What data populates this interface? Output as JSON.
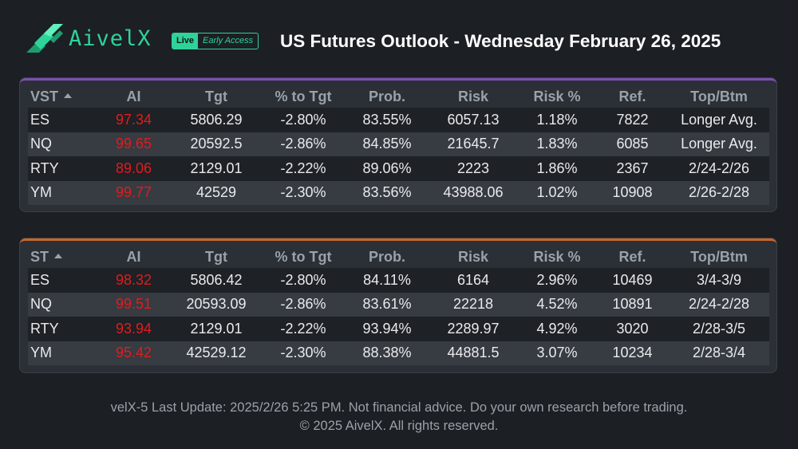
{
  "brand": {
    "name": "AivelX",
    "badge_live": "Live",
    "badge_early": "Early Access"
  },
  "page_title": "US Futures Outlook - Wednesday February 26, 2025",
  "columns": [
    "AI",
    "Tgt",
    "% to Tgt",
    "Prob.",
    "Risk",
    "Risk %",
    "Ref.",
    "Top/Btm"
  ],
  "vst": {
    "label": "VST",
    "rows": [
      {
        "symbol": "ES",
        "ai": "97.34",
        "tgt": "5806.29",
        "pct": "-2.80%",
        "prob": "83.55%",
        "risk": "6057.13",
        "risk_pct": "1.18%",
        "ref": "7822",
        "top_btm": "Longer Avg."
      },
      {
        "symbol": "NQ",
        "ai": "99.65",
        "tgt": "20592.5",
        "pct": "-2.86%",
        "prob": "84.85%",
        "risk": "21645.7",
        "risk_pct": "1.83%",
        "ref": "6085",
        "top_btm": "Longer Avg."
      },
      {
        "symbol": "RTY",
        "ai": "89.06",
        "tgt": "2129.01",
        "pct": "-2.22%",
        "prob": "89.06%",
        "risk": "2223",
        "risk_pct": "1.86%",
        "ref": "2367",
        "top_btm": "2/24-2/26"
      },
      {
        "symbol": "YM",
        "ai": "99.77",
        "tgt": "42529",
        "pct": "-2.30%",
        "prob": "83.56%",
        "risk": "43988.06",
        "risk_pct": "1.02%",
        "ref": "10908",
        "top_btm": "2/26-2/28"
      }
    ]
  },
  "st": {
    "label": "ST",
    "rows": [
      {
        "symbol": "ES",
        "ai": "98.32",
        "tgt": "5806.42",
        "pct": "-2.80%",
        "prob": "84.11%",
        "risk": "6164",
        "risk_pct": "2.96%",
        "ref": "10469",
        "top_btm": "3/4-3/9"
      },
      {
        "symbol": "NQ",
        "ai": "99.51",
        "tgt": "20593.09",
        "pct": "-2.86%",
        "prob": "83.61%",
        "risk": "22218",
        "risk_pct": "4.52%",
        "ref": "10891",
        "top_btm": "2/24-2/28"
      },
      {
        "symbol": "RTY",
        "ai": "93.94",
        "tgt": "2129.01",
        "pct": "-2.22%",
        "prob": "93.94%",
        "risk": "2289.97",
        "risk_pct": "4.92%",
        "ref": "3020",
        "top_btm": "2/28-3/5"
      },
      {
        "symbol": "YM",
        "ai": "95.42",
        "tgt": "42529.12",
        "pct": "-2.30%",
        "prob": "88.38%",
        "risk": "44881.5",
        "risk_pct": "3.07%",
        "ref": "10234",
        "top_btm": "2/28-3/4"
      }
    ]
  },
  "footer": {
    "line1": "velX-5 Last Update: 2025/2/26 5:25 PM. Not financial advice. Do your own research before trading.",
    "line2": "© 2025 AivelX. All rights reserved."
  },
  "colors": {
    "accent": "#2ed39a",
    "ai_value": "#e11c1c",
    "vst_border": "#7c4fb0",
    "st_border": "#c8672a",
    "background": "#1c1f24"
  },
  "icons": {
    "logo": "aivelx-logo-icon",
    "sort": "sort-ascending-icon"
  }
}
